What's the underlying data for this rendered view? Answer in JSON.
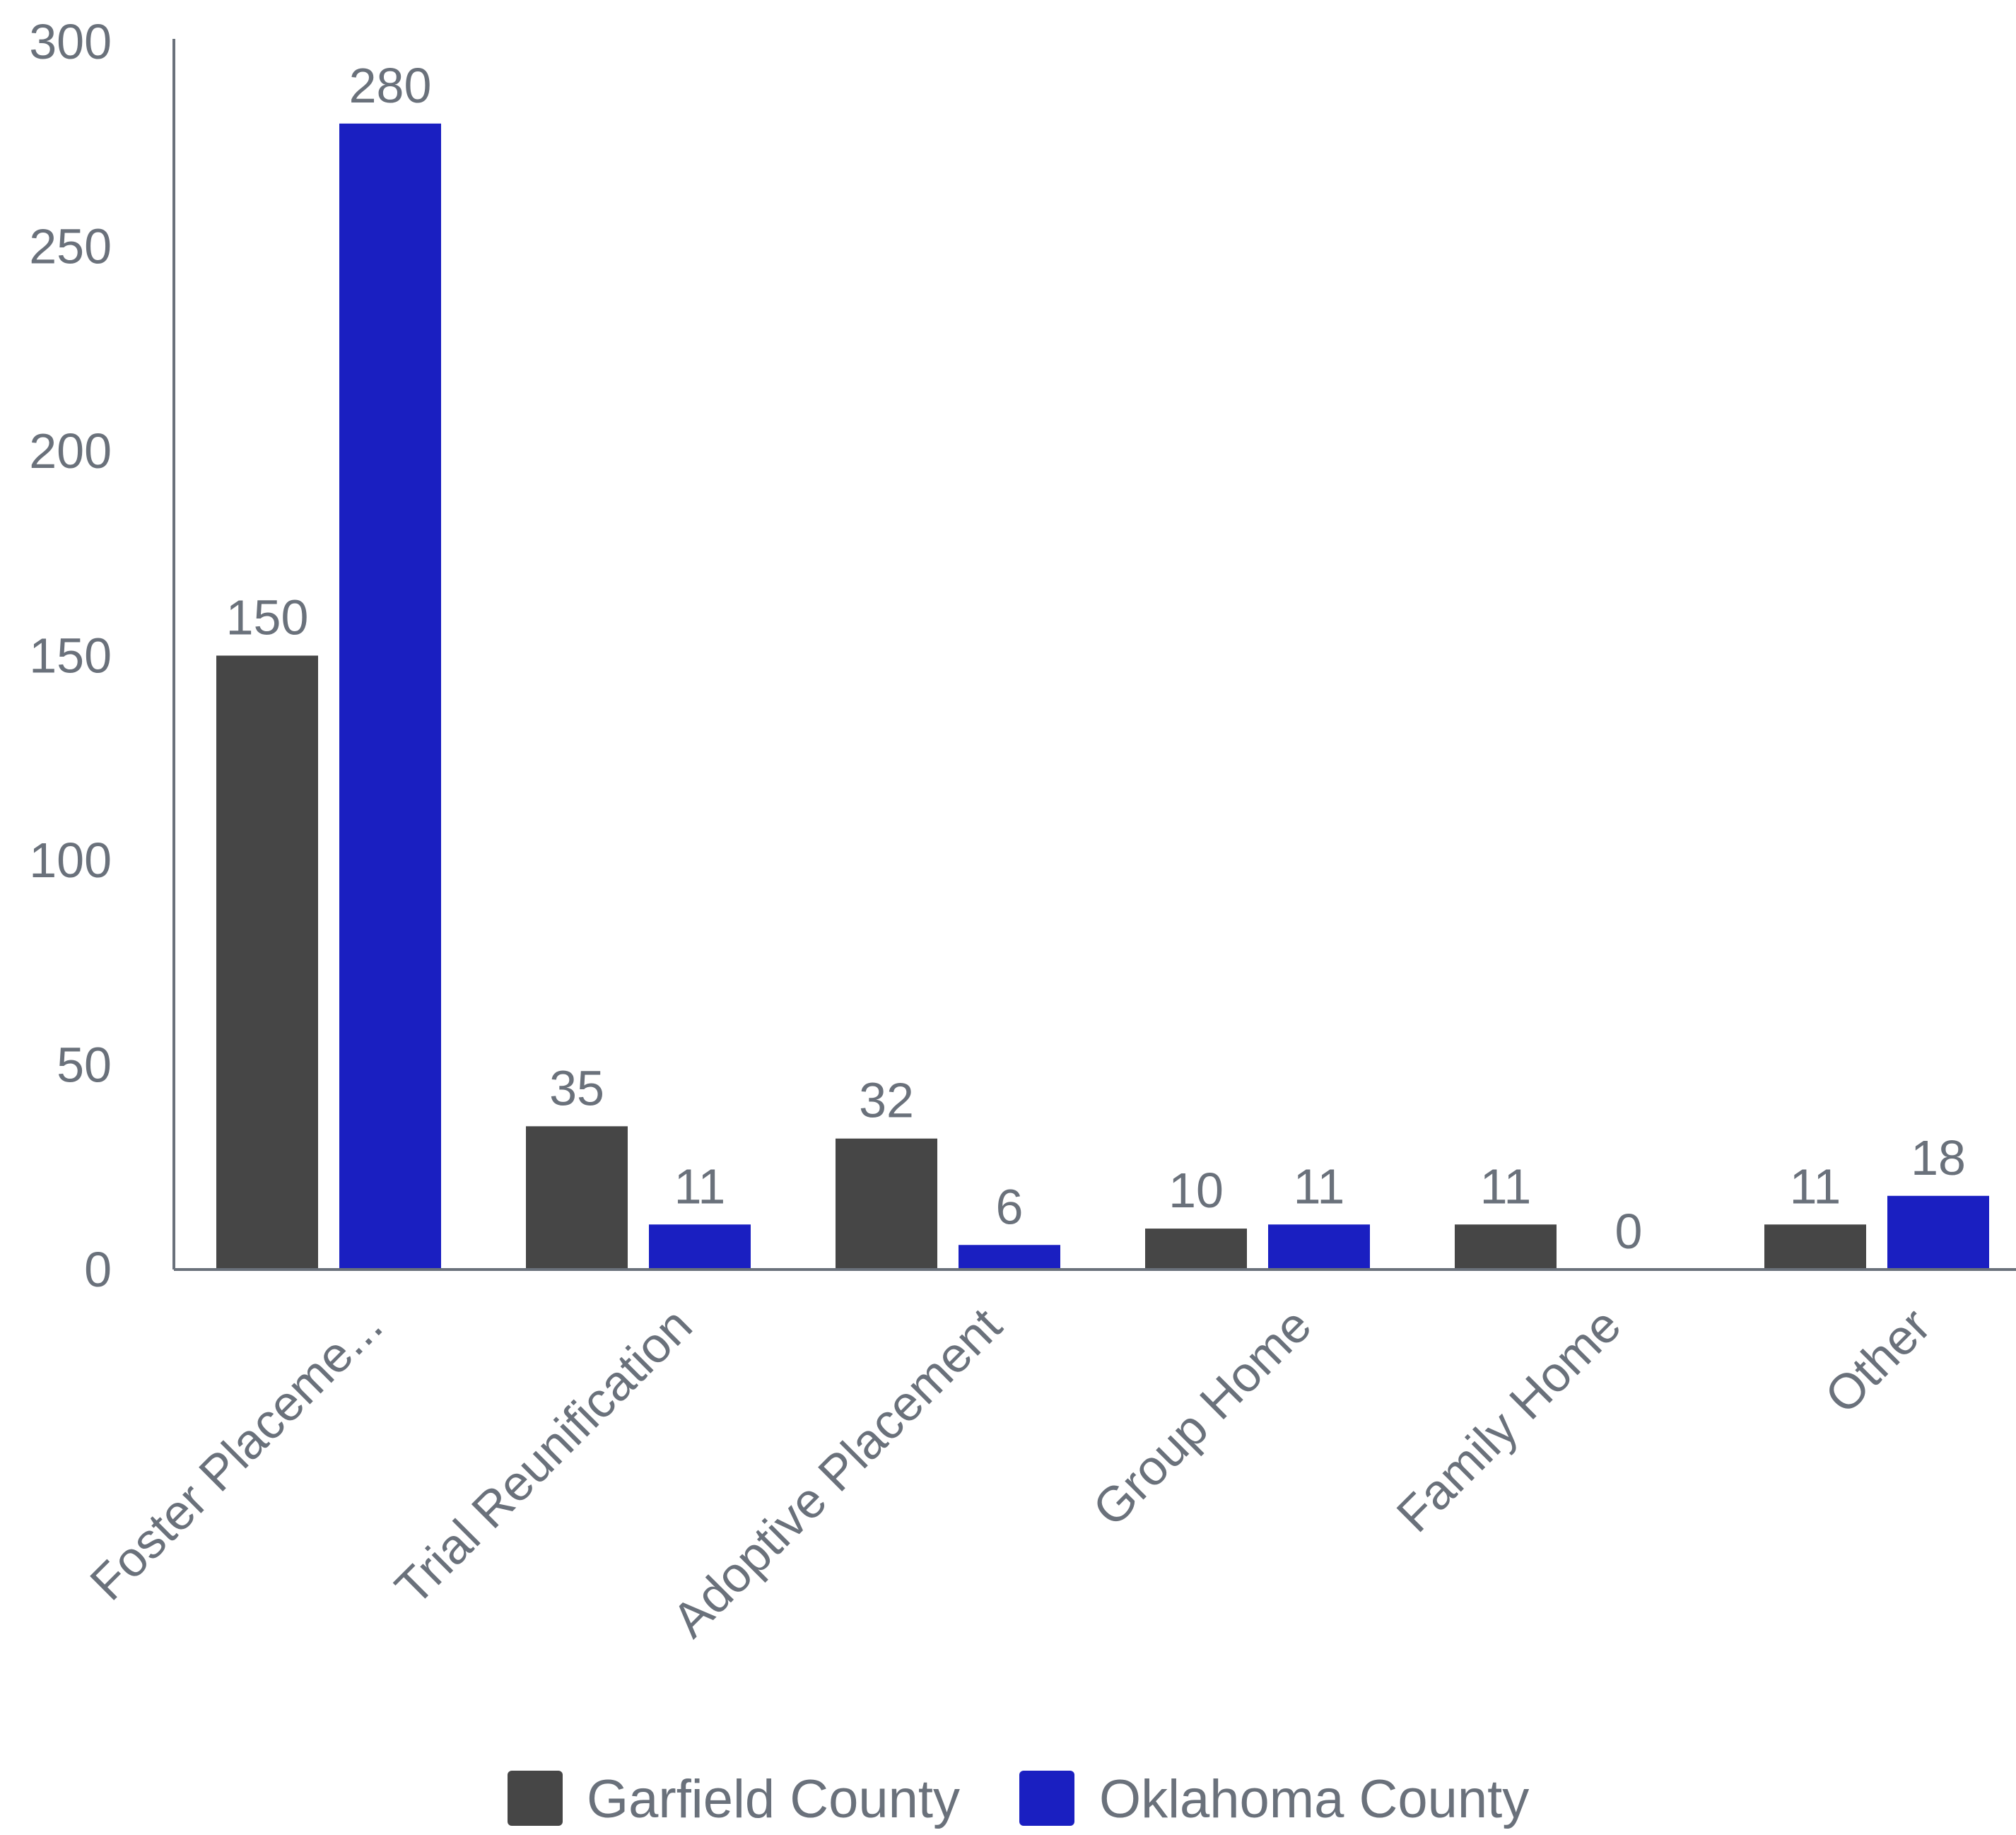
{
  "chart_data": {
    "type": "bar",
    "categories": [
      "Foster Placeme...",
      "Trial Reunification",
      "Adoptive Placement",
      "Group Home",
      "Family Home",
      "Other"
    ],
    "series": [
      {
        "name": "Garfield County",
        "values": [
          150,
          35,
          32,
          10,
          11,
          11
        ]
      },
      {
        "name": "Oklahoma County",
        "values": [
          280,
          11,
          6,
          11,
          0,
          18
        ]
      }
    ],
    "yticks": [
      0,
      50,
      100,
      150,
      200,
      250,
      300
    ],
    "ylim": [
      0,
      300
    ],
    "grid": false,
    "legend_position": "bottom",
    "colors": [
      "#464646",
      "#1a1fc1"
    ],
    "axis_color": "#6a717b",
    "text_color": "#6a717b"
  }
}
